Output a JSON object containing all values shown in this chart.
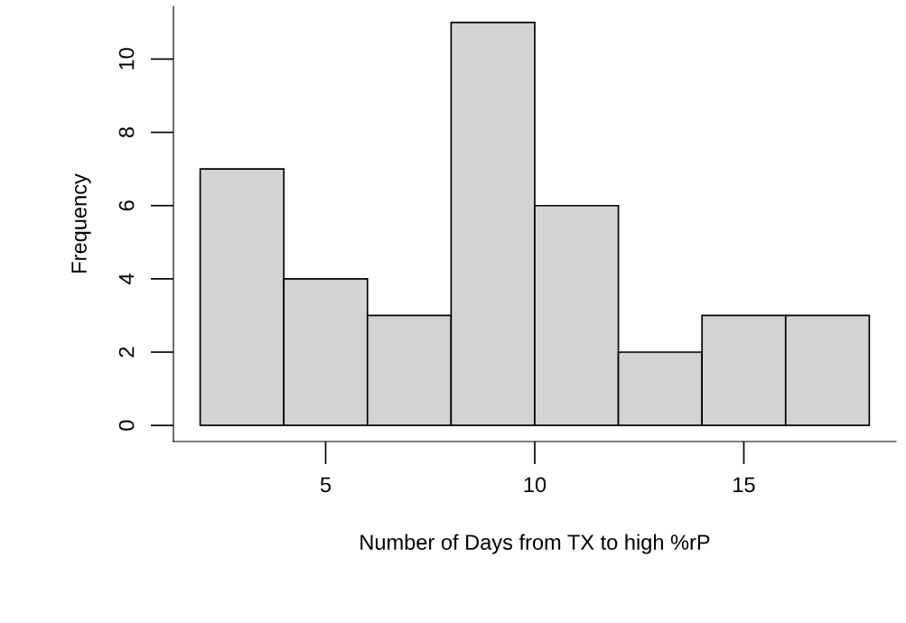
{
  "chart_data": {
    "type": "histogram",
    "xlabel": "Number of Days from TX to high %rP",
    "ylabel": "Frequency",
    "bins": [
      2,
      4,
      6,
      8,
      10,
      12,
      14,
      16,
      18
    ],
    "values": [
      7,
      4,
      3,
      11,
      6,
      2,
      3,
      3
    ],
    "color": "#d3d3d3",
    "xlim": [
      1.36,
      18.64
    ],
    "ylim": [
      -0.44,
      11.44
    ],
    "xticks": [
      5,
      10,
      15
    ],
    "yticks": [
      0,
      2,
      4,
      6,
      8,
      10
    ]
  }
}
